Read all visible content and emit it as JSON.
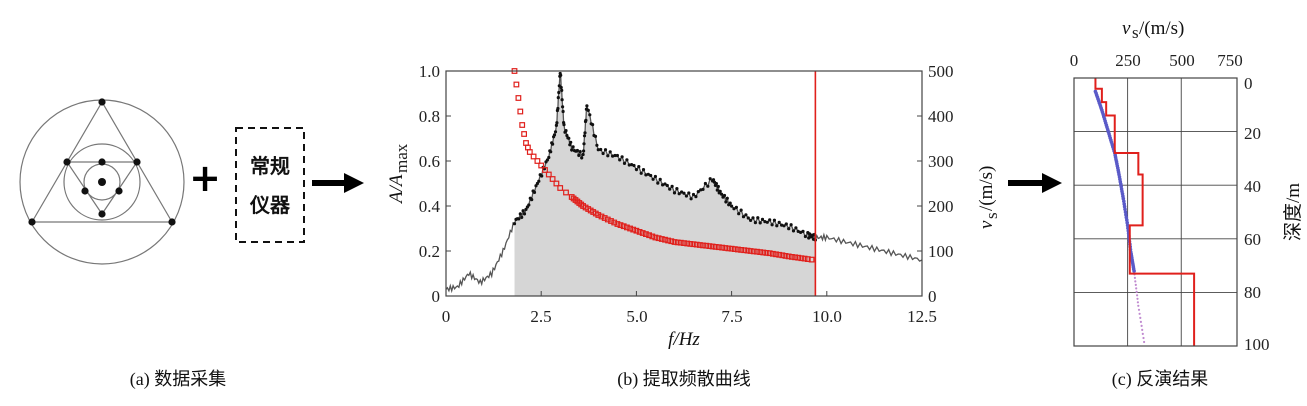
{
  "panel_a": {
    "box_line1": "常规",
    "box_line2": "仪器",
    "plus": "+",
    "caption": "(a) 数据采集"
  },
  "panel_b": {
    "caption": "(b) 提取频散曲线",
    "x_label": "f/Hz",
    "y_left_label": "A/A",
    "y_left_sub": "max",
    "y_right_label": "v",
    "y_right_sub": "s",
    "y_right_unit": "/(m/s)",
    "x_ticks": [
      "0",
      "2.5",
      "5.0",
      "7.5",
      "10.0",
      "12.5"
    ],
    "y_left_ticks": [
      "0",
      "0.2",
      "0.4",
      "0.6",
      "0.8",
      "1.0"
    ],
    "y_right_ticks": [
      "0",
      "100",
      "200",
      "300",
      "400",
      "500"
    ]
  },
  "panel_c": {
    "caption": "(c) 反演结果",
    "top_label": "v",
    "top_sub": "s",
    "top_unit": "/(m/s)",
    "right_label": "深度/m",
    "x_ticks": [
      "0",
      "250",
      "500",
      "750"
    ],
    "y_ticks": [
      "0",
      "20",
      "40",
      "60",
      "80",
      "100"
    ]
  },
  "colors": {
    "red": "#e0201c",
    "blue": "#5a5ac8",
    "fill": "#d6d6d6",
    "grid": "#444444"
  },
  "chart_data": [
    {
      "type": "area",
      "panel": "b",
      "xlabel": "f/Hz",
      "ylabel": "A/Amax",
      "xlim": [
        0,
        12.5
      ],
      "ylim": [
        0,
        1.0
      ],
      "series": [
        {
          "values_x": [
            0,
            0.3,
            0.6,
            0.9,
            1.2,
            1.5,
            1.8,
            2.1,
            2.4,
            2.7,
            2.9,
            3.0,
            3.1,
            3.3,
            3.6,
            3.7,
            4.0,
            4.5,
            5.0,
            5.5,
            6.0,
            6.5,
            7.0,
            7.2,
            7.5,
            8.0,
            8.5,
            9.0,
            9.5,
            9.7,
            10.0,
            10.5,
            11.0,
            11.5,
            12.0,
            12.5
          ],
          "values_y": [
            0.03,
            0.04,
            0.1,
            0.06,
            0.1,
            0.2,
            0.33,
            0.38,
            0.5,
            0.62,
            0.75,
            1.0,
            0.75,
            0.66,
            0.62,
            0.85,
            0.65,
            0.62,
            0.57,
            0.52,
            0.47,
            0.44,
            0.52,
            0.46,
            0.4,
            0.34,
            0.33,
            0.31,
            0.27,
            0.26,
            0.26,
            0.24,
            0.22,
            0.2,
            0.18,
            0.16
          ]
        }
      ],
      "shaded_range": [
        1.8,
        9.7
      ],
      "vline": 9.7
    },
    {
      "type": "scatter",
      "panel": "b",
      "name": "dispersion",
      "y_axis": "right",
      "ylim": [
        0,
        500
      ],
      "x": [
        1.8,
        1.9,
        2.0,
        2.1,
        2.2,
        2.4,
        2.6,
        2.8,
        3.0,
        3.3,
        3.6,
        4.0,
        4.5,
        5.0,
        5.5,
        6.0,
        6.5,
        7.0,
        7.5,
        8.0,
        8.5,
        9.0,
        9.5,
        9.7
      ],
      "y": [
        500,
        440,
        380,
        340,
        320,
        300,
        280,
        260,
        240,
        220,
        200,
        180,
        160,
        145,
        130,
        120,
        115,
        110,
        105,
        100,
        95,
        88,
        82,
        80
      ]
    },
    {
      "type": "line",
      "panel": "c",
      "xlabel": "vs/(m/s)",
      "ylabel": "深度/m",
      "xlim": [
        0,
        750
      ],
      "ylim": [
        0,
        100
      ],
      "series": [
        {
          "name": "model",
          "vs": [
            130,
            130,
            150,
            190,
            300,
            320,
            260,
            560,
            560
          ],
          "depth": [
            0,
            8,
            14,
            28,
            42,
            55,
            73,
            73,
            100
          ]
        },
        {
          "name": "points",
          "vs": [
            100,
            130,
            160,
            190,
            210,
            230,
            250,
            265,
            280,
            300,
            330
          ],
          "depth": [
            5,
            12,
            20,
            28,
            36,
            45,
            55,
            65,
            72,
            85,
            100
          ]
        }
      ]
    }
  ]
}
